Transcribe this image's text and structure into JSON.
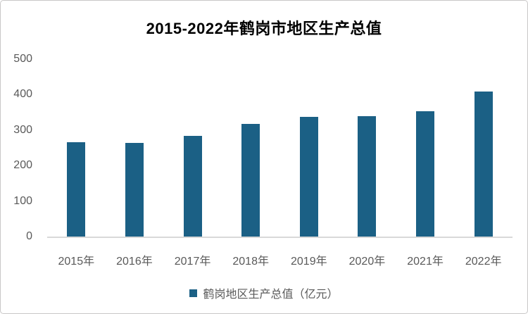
{
  "frame": {
    "background_color": "#FFFFFF",
    "border_color": "#C9C7C7"
  },
  "chart_data": {
    "type": "bar",
    "title": "2015-2022年鹤岗市地区生产总值",
    "categories": [
      "2015年",
      "2016年",
      "2017年",
      "2018年",
      "2019年",
      "2020年",
      "2021年",
      "2022年"
    ],
    "values": [
      266,
      263,
      283,
      317,
      338,
      340,
      354,
      408
    ],
    "legend_label": "鹤岗地区生产总值（亿元）",
    "unit": "亿元",
    "xlabel": "",
    "ylabel": "",
    "ylim": [
      0,
      500
    ],
    "y_ticks": [
      0,
      100,
      200,
      300,
      400,
      500
    ],
    "grid": false,
    "legend_position": "bottom",
    "bar_color": "#1B6085",
    "axis_label_color": "#595959",
    "axis_line_color": "#D9D9D9",
    "title_color": "#000000"
  }
}
